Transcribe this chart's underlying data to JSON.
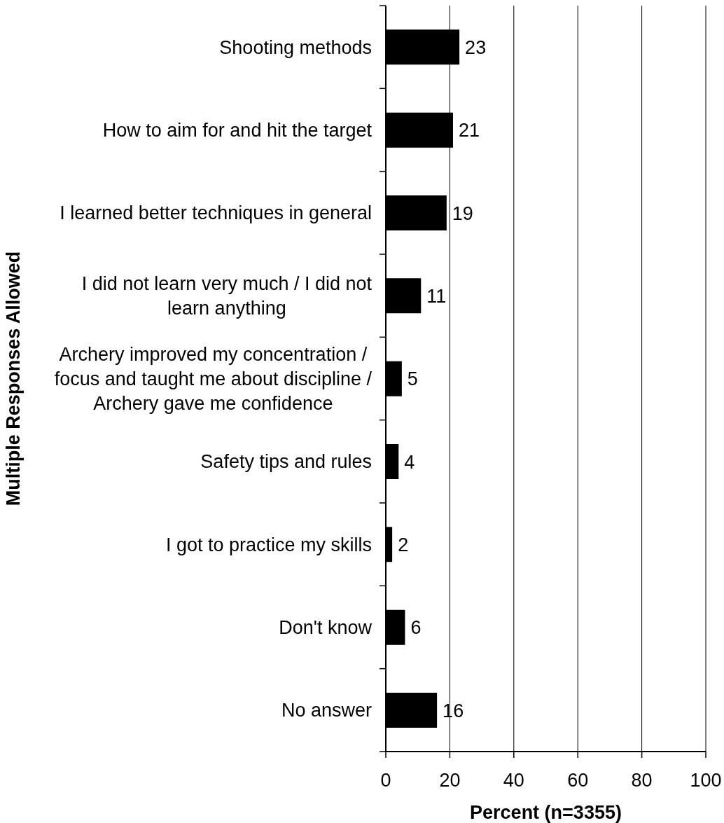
{
  "chart_data": {
    "type": "bar",
    "orientation": "horizontal",
    "xlabel": "Percent (n=3355)",
    "ylabel": "Multiple Responses Allowed",
    "categories": [
      "Shooting methods",
      "How to aim for and hit the target",
      "I learned better techniques in general",
      "I did not learn very much / I did not learn anything",
      "Archery improved my concentration / focus and taught me about discipline / Archery gave me confidence",
      "Safety tips and rules",
      "I got to practice my skills",
      "Don't know",
      "No answer"
    ],
    "values": [
      23,
      21,
      19,
      11,
      5,
      4,
      2,
      6,
      16
    ],
    "color": "#000000",
    "xlim": [
      0,
      100
    ],
    "xticks": [
      0,
      20,
      40,
      60,
      80,
      100
    ],
    "grid": "x",
    "data_labels": true
  }
}
